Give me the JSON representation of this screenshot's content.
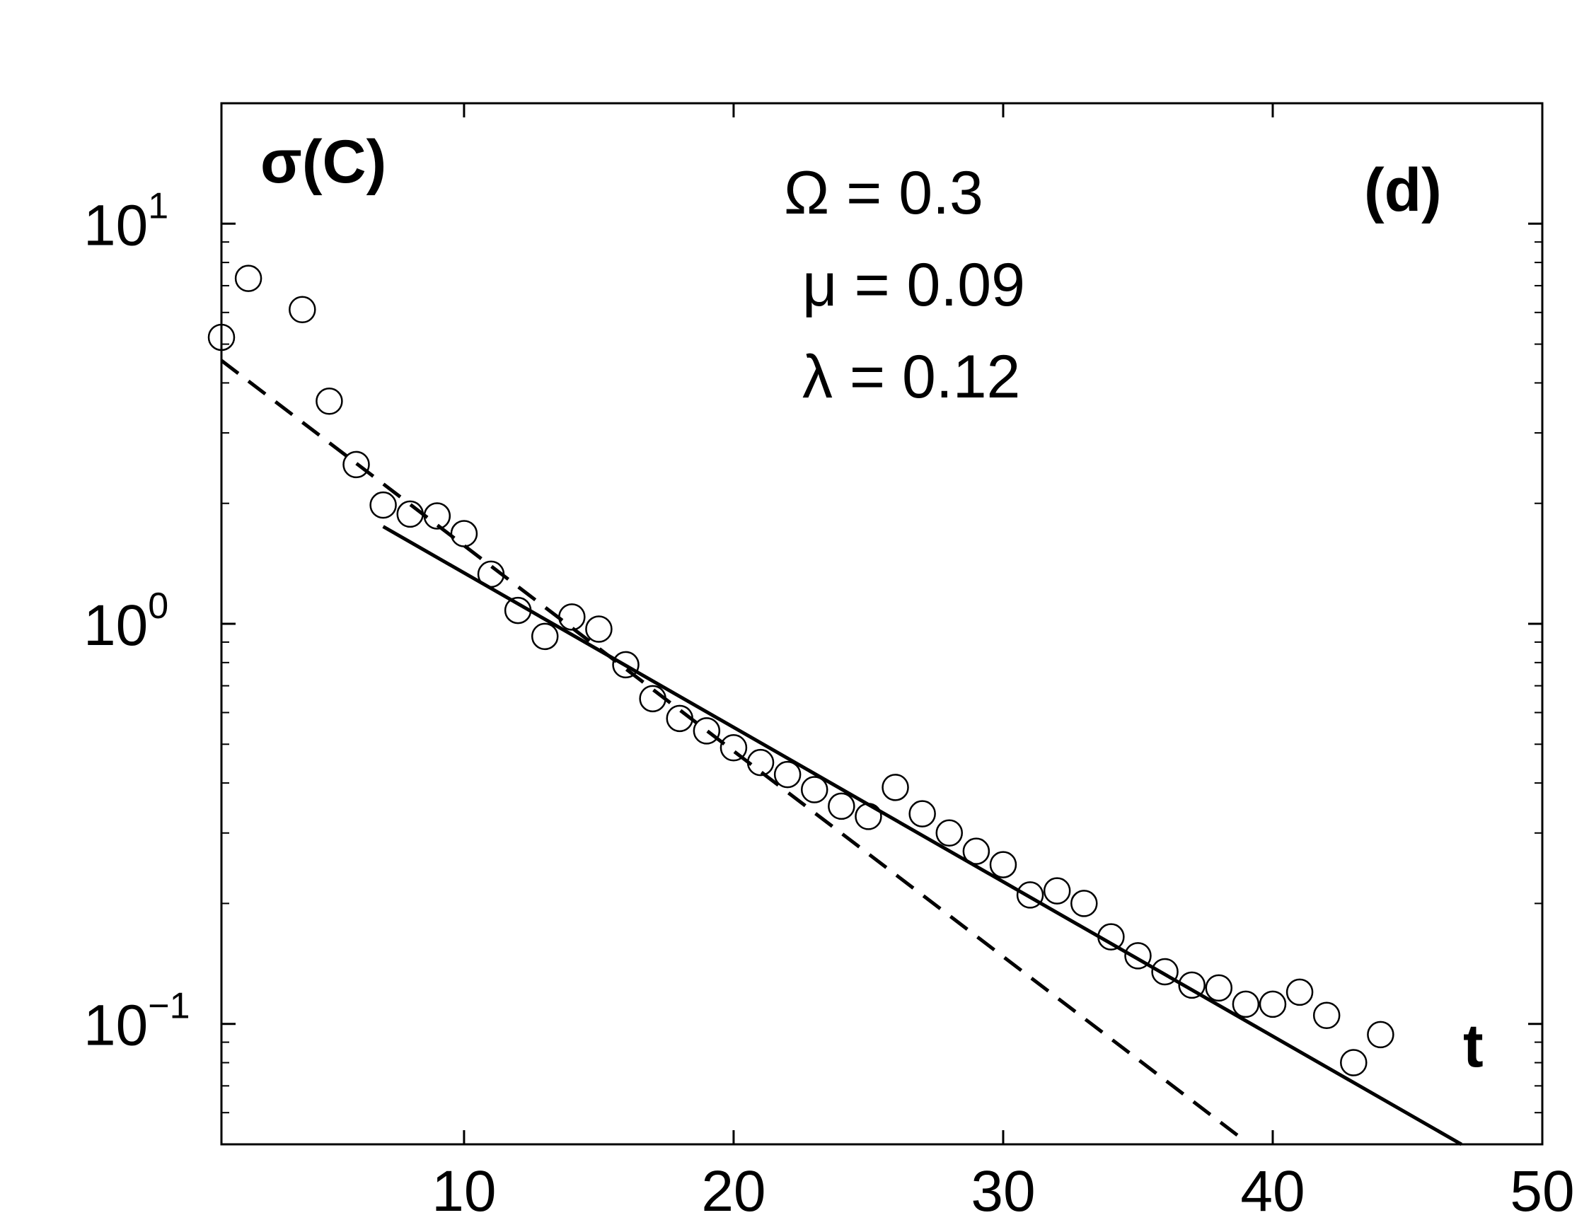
{
  "chart_data": {
    "type": "scatter",
    "ylabel": "σ(C)",
    "xlabel": "t",
    "panel_label": "(d)",
    "annotations": [
      "Ω = 0.3",
      "μ = 0.09",
      "λ = 0.12"
    ],
    "x_axis": {
      "scale": "linear",
      "range": [
        1,
        50
      ],
      "ticks": [
        10,
        20,
        30,
        40,
        50
      ],
      "tick_labels": [
        "10",
        "20",
        "30",
        "40",
        "50"
      ]
    },
    "y_axis": {
      "scale": "log",
      "range": [
        0.05,
        20
      ],
      "ticks": [
        0.1,
        1,
        10
      ],
      "tick_labels": [
        {
          "base": "10",
          "exp": "−1"
        },
        {
          "base": "10",
          "exp": "0"
        },
        {
          "base": "10",
          "exp": "1"
        }
      ]
    },
    "grid": false,
    "series": [
      {
        "style": "open-circles",
        "x": [
          1,
          2,
          4,
          5,
          6,
          7,
          8,
          9,
          10,
          11,
          12,
          13,
          14,
          15,
          16,
          17,
          18,
          19,
          20,
          21,
          22,
          23,
          24,
          25,
          26,
          27,
          28,
          29,
          30,
          31,
          32,
          33,
          34,
          35,
          36,
          37,
          38,
          39,
          40,
          41,
          42,
          43,
          44
        ],
        "y": [
          5.2,
          7.3,
          6.1,
          3.6,
          2.5,
          1.98,
          1.88,
          1.86,
          1.68,
          1.33,
          1.08,
          0.93,
          1.04,
          0.97,
          0.79,
          0.65,
          0.58,
          0.54,
          0.49,
          0.45,
          0.42,
          0.385,
          0.35,
          0.33,
          0.39,
          0.335,
          0.3,
          0.27,
          0.25,
          0.21,
          0.215,
          0.2,
          0.165,
          0.148,
          0.135,
          0.125,
          0.123,
          0.112,
          0.112,
          0.12,
          0.105,
          0.08,
          0.094
        ]
      },
      {
        "style": "dashed-line",
        "x": [
          1,
          38.8
        ],
        "y": [
          4.55,
          0.052
        ]
      },
      {
        "style": "solid-line",
        "x": [
          7,
          47
        ],
        "y": [
          1.75,
          0.05
        ]
      }
    ]
  }
}
